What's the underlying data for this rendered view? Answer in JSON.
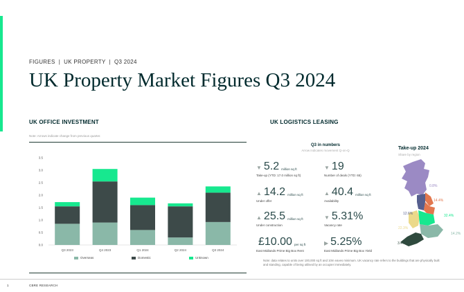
{
  "header": {
    "eyebrow": "FIGURES  |  UK PROPERTY  |  Q3 2024",
    "title": "UK Property Market Figures Q3 2024"
  },
  "office": {
    "title": "UK OFFICE INVESTMENT",
    "note": "Note: Arrows indicate change from previous quarter."
  },
  "chart_data": {
    "type": "bar",
    "stacked": true,
    "categories": [
      "Q3 2023",
      "Q4 2023",
      "Q1 2024",
      "Q2 2024",
      "Q3 2024"
    ],
    "series": [
      {
        "name": "Overseas",
        "values": [
          0.85,
          0.9,
          0.6,
          0.3,
          0.92
        ],
        "color": "#8ab8a8"
      },
      {
        "name": "Domestic",
        "values": [
          0.7,
          1.65,
          1.0,
          1.25,
          1.18
        ],
        "color": "#3d4a49"
      },
      {
        "name": "Unknown",
        "values": [
          0.17,
          0.5,
          0.3,
          0.12,
          0.25
        ],
        "color": "#17e88f"
      }
    ],
    "ylim": [
      0,
      3.5
    ],
    "yticks": [
      "0.0",
      "0.5",
      "1.0",
      "1.5",
      "2.0",
      "2.5",
      "3.0",
      "3.5"
    ],
    "grid": false,
    "legend": "bottom"
  },
  "logistics": {
    "title": "UK LOGISTICS LEASING",
    "q3_title": "Q3 in numbers",
    "q3_sub": "Arrow indicates movement Q-on-Q",
    "metrics": [
      {
        "arrow": "▼",
        "value": "5.2",
        "unit": "million sq ft",
        "label": "Take-up (YTD: 17.0 million sq ft)"
      },
      {
        "arrow": "▼",
        "value": "19",
        "unit": "",
        "label": "Number of deals (YTD: 65)"
      },
      {
        "arrow": "▲",
        "value": "14.2",
        "unit": "million sq ft",
        "label": "Under offer"
      },
      {
        "arrow": "▲",
        "value": "40.4",
        "unit": "million sq ft",
        "label": "Availability"
      },
      {
        "arrow": "▲",
        "value": "25.5",
        "unit": "million sq ft",
        "label": "Under construction"
      },
      {
        "arrow": "▼",
        "value": "5.31%",
        "unit": "",
        "label": "Vacancy rate"
      },
      {
        "arrow": "",
        "value": "£10.00",
        "unit": "per sq ft",
        "label": "East Midlands Prime Big Box Rent"
      },
      {
        "arrow": "▶",
        "value": "5.25%",
        "unit": "",
        "label": "East Midlands Prime Big Box Yield"
      }
    ],
    "note": "Note: data relates to units over 100,000 sq ft and 10m eaves minimum. UK vacancy rate refers to the buildings that are physically built and standing, capable of being utilised by an occupier immediately.",
    "takeup": {
      "title": "Take-up 2024",
      "sub": "Share by region",
      "regions": [
        {
          "pct": "0.8%",
          "color": "#9b8ac4"
        },
        {
          "pct": "14.4%",
          "color": "#e2774e"
        },
        {
          "pct": "12.6%",
          "color": "#555e8e"
        },
        {
          "pct": "32.4%",
          "color": "#17e88f"
        },
        {
          "pct": "22.3%",
          "color": "#ebd98a"
        },
        {
          "pct": "14.2%",
          "color": "#8ab8a8"
        },
        {
          "pct": "3.4%",
          "color": "#2f4a3e"
        }
      ]
    }
  },
  "footer": {
    "page": "1",
    "label": "CBRE RESEARCH"
  }
}
